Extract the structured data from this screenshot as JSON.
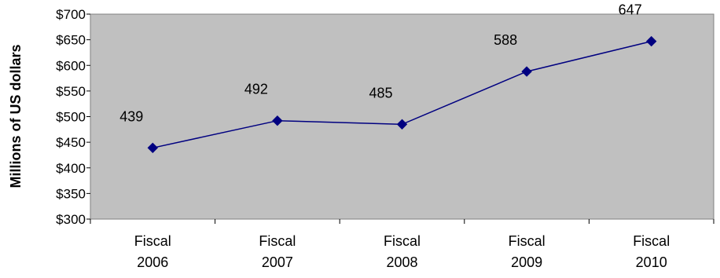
{
  "chart_data": {
    "type": "line",
    "title": "",
    "xlabel": "",
    "ylabel": "Millions of US dollars",
    "categories": [
      [
        "Fiscal",
        "2006"
      ],
      [
        "Fiscal",
        "2007"
      ],
      [
        "Fiscal",
        "2008"
      ],
      [
        "Fiscal",
        "2009"
      ],
      [
        "Fiscal",
        "2010"
      ]
    ],
    "values": [
      439,
      492,
      485,
      588,
      647
    ],
    "data_labels": [
      "439",
      "492",
      "485",
      "588",
      "647"
    ],
    "ylim": [
      300,
      700
    ],
    "ytick_values": [
      300,
      350,
      400,
      450,
      500,
      550,
      600,
      650,
      700
    ],
    "ytick_labels": [
      "$300",
      "$350",
      "$400",
      "$450",
      "$500",
      "$550",
      "$600",
      "$650",
      "$700"
    ],
    "grid": false,
    "legend": "none",
    "colors": {
      "plot_background": "#c0c0c0",
      "plot_border": "#808080",
      "series_line": "#000080",
      "text": "#000000"
    }
  }
}
